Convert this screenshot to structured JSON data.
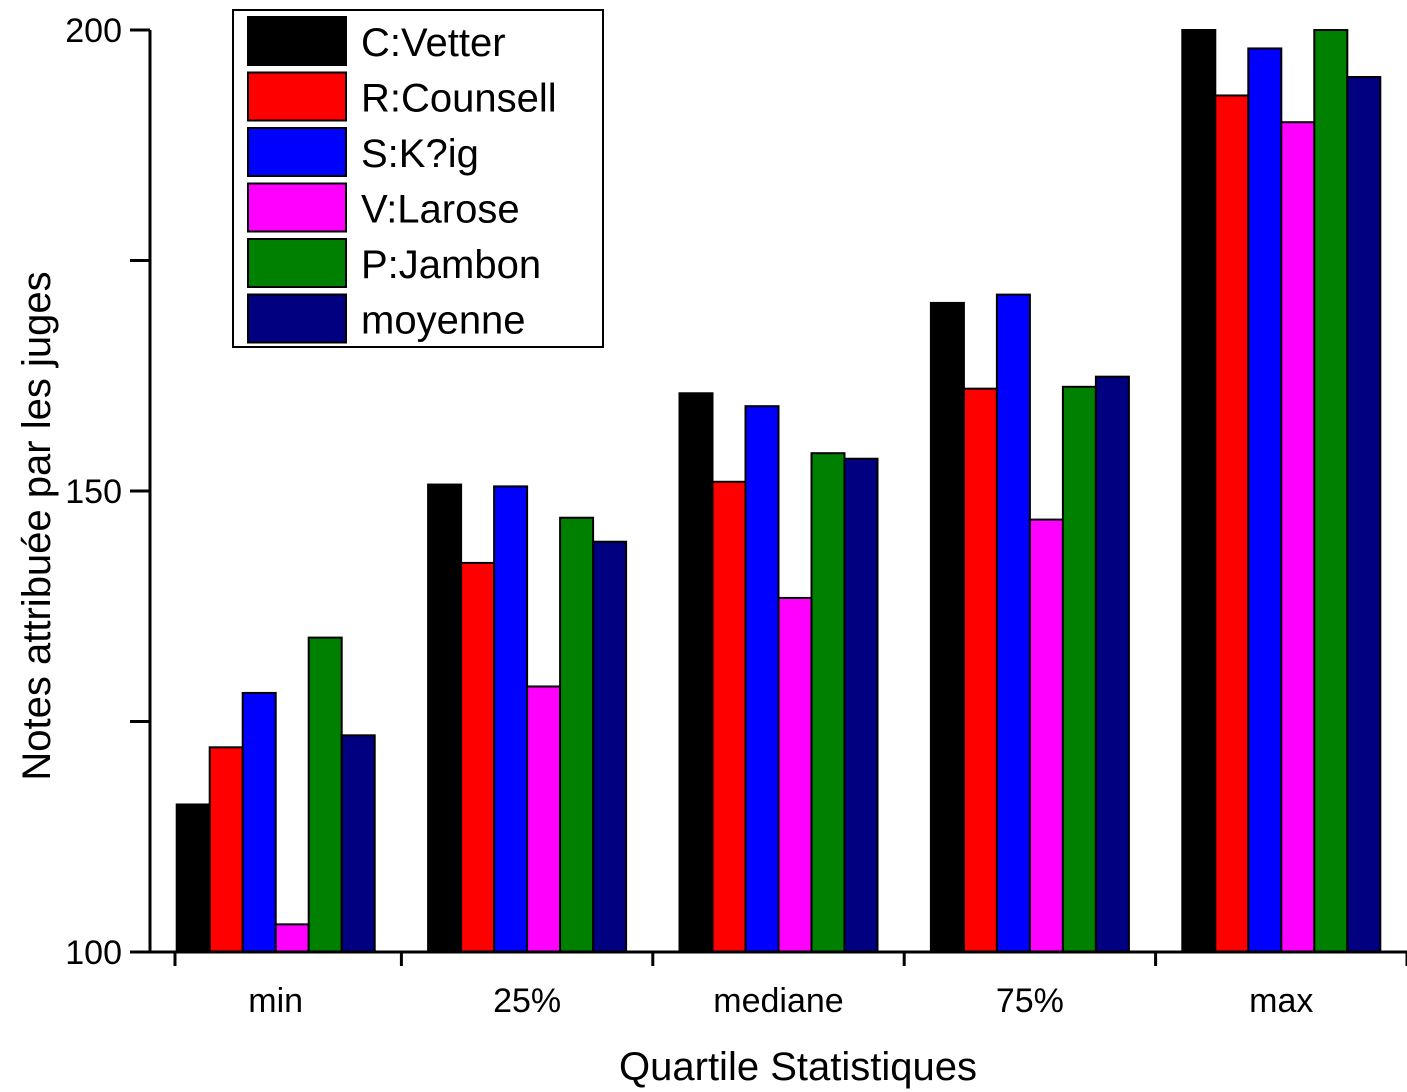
{
  "chart_data": {
    "type": "bar",
    "title": "",
    "xlabel": "Quartile Statistiques",
    "ylabel": "Notes attribuée par les juges",
    "ylim": [
      100,
      200
    ],
    "yticks": [
      100,
      150,
      200
    ],
    "categories": [
      "min",
      "25%",
      "mediane",
      "75%",
      "max"
    ],
    "legend_position": "top-left",
    "grid": false,
    "series": [
      {
        "name": "C:Vetter",
        "color": "#000000",
        "values": [
          116,
          150.7,
          160.6,
          170.4,
          200
        ]
      },
      {
        "name": "R:Counsell",
        "color": "#ff0000",
        "values": [
          122.2,
          142.2,
          151,
          161.1,
          192.9
        ]
      },
      {
        "name": "S:K?ig",
        "color": "#0000ff",
        "values": [
          128.1,
          150.5,
          159.2,
          171.3,
          198
        ]
      },
      {
        "name": "V:Larose",
        "color": "#ff00ff",
        "values": [
          103,
          128.8,
          138.4,
          146.9,
          190
        ]
      },
      {
        "name": "P:Jambon",
        "color": "#008000",
        "values": [
          134.1,
          147.1,
          154.1,
          161.3,
          200
        ]
      },
      {
        "name": "moyenne",
        "color": "#000080",
        "values": [
          123.5,
          144.5,
          153.5,
          162.4,
          194.9
        ]
      }
    ]
  }
}
